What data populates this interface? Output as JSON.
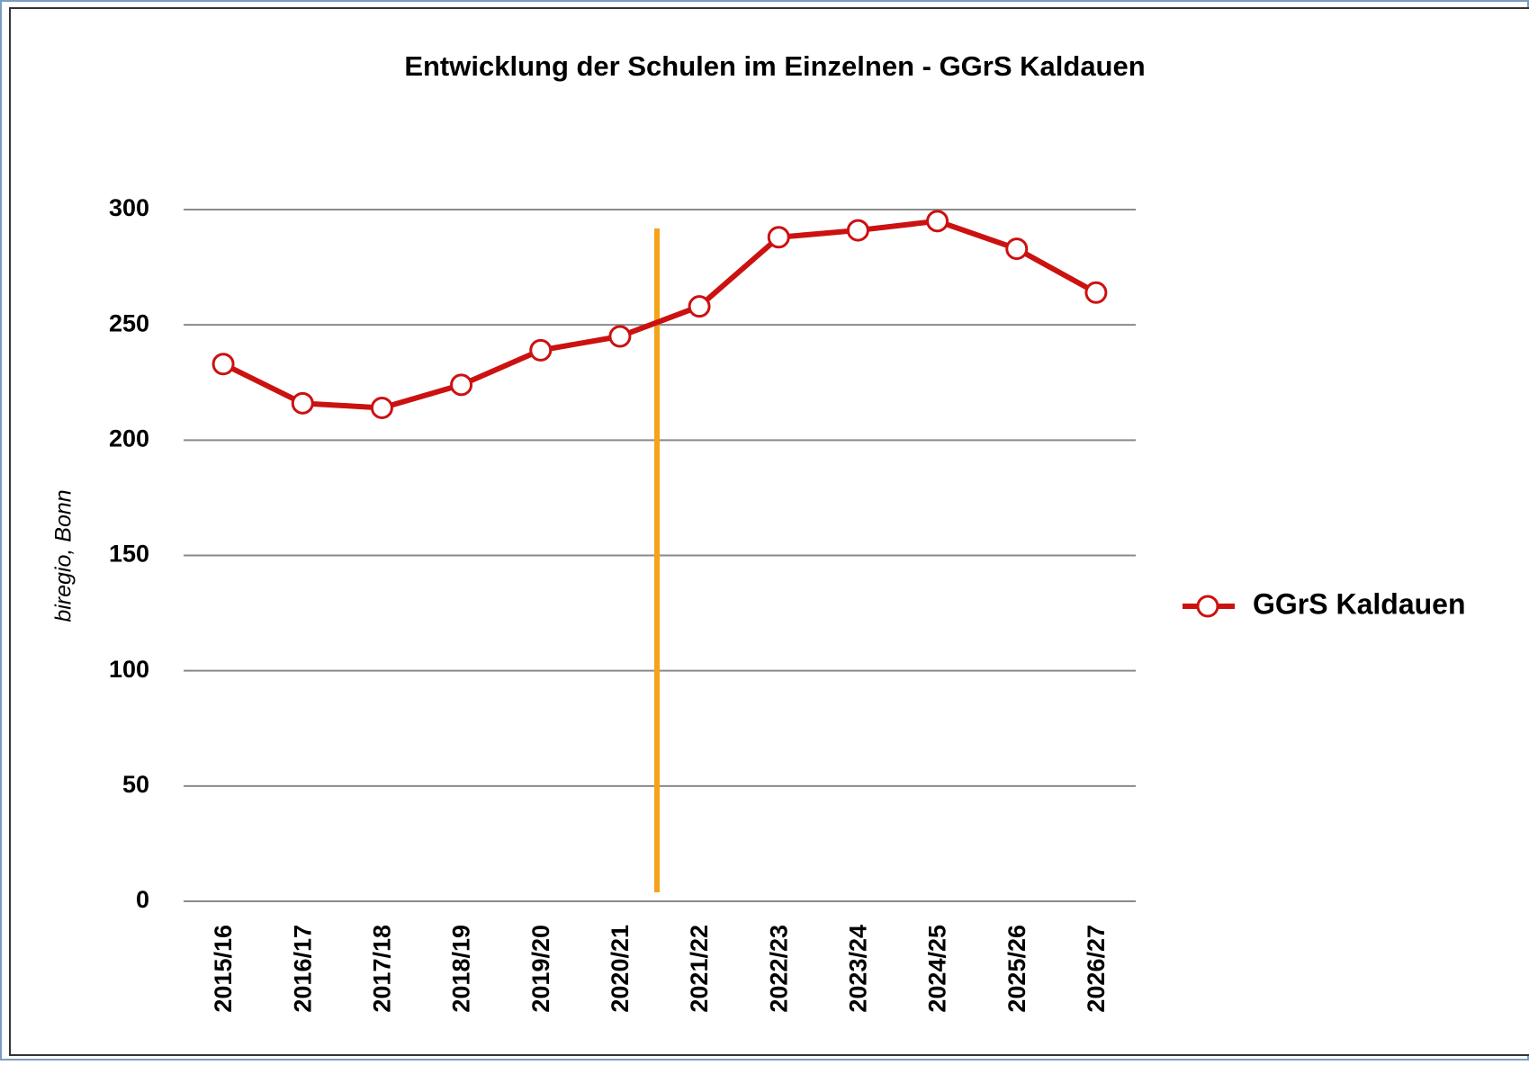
{
  "chart_data": {
    "type": "line",
    "title": "Entwicklung der Schulen im Einzelnen - GGrS Kaldauen",
    "y_label": "biregio, Bonn",
    "categories": [
      "2015/16",
      "2016/17",
      "2017/18",
      "2018/19",
      "2019/20",
      "2020/21",
      "2021/22",
      "2022/23",
      "2023/24",
      "2024/25",
      "2025/26",
      "2026/27"
    ],
    "series": [
      {
        "name": "GGrS Kaldauen",
        "color": "#cc1111",
        "values": [
          233,
          216,
          214,
          224,
          239,
          245,
          258,
          288,
          291,
          295,
          283,
          264
        ]
      }
    ],
    "ylim": [
      0,
      300
    ],
    "yticks": [
      0,
      50,
      100,
      150,
      200,
      250,
      300
    ],
    "grid": true,
    "legend": "right"
  }
}
